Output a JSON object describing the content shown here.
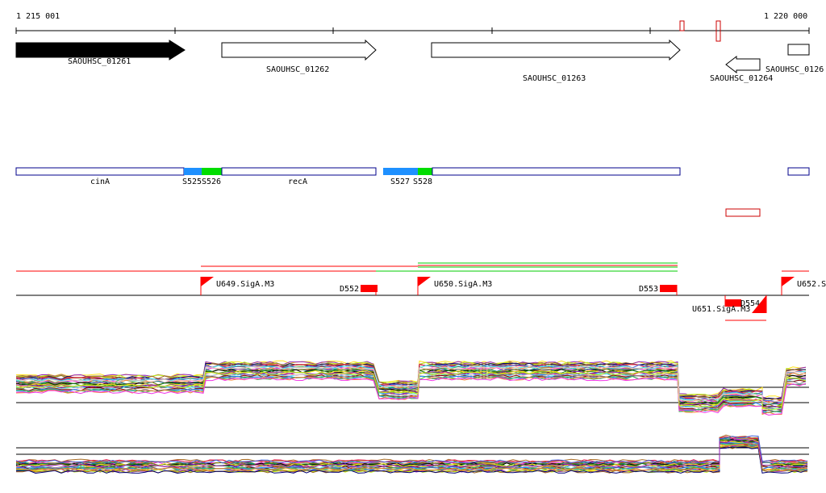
{
  "ruler": {
    "start_label": "1 215 001",
    "end_label": "1 220 000"
  },
  "genes": [
    {
      "name": "SAOUHSC_01261",
      "strand": "+",
      "filled": true
    },
    {
      "name": "SAOUHSC_01262",
      "strand": "+",
      "filled": false
    },
    {
      "name": "SAOUHSC_01263",
      "strand": "+",
      "filled": false
    },
    {
      "name": "SAOUHSC_01264",
      "strand": "-",
      "filled": false
    },
    {
      "name": "SAOUHSC_0126",
      "strand": "+",
      "filled": false
    }
  ],
  "operon_track": {
    "labels": [
      "cinA",
      "S525",
      "S526",
      "recA",
      "S527",
      "S528"
    ]
  },
  "segments": [
    {
      "label": "U649.SigA.M3",
      "type": "up"
    },
    {
      "label": "D552",
      "type": "down"
    },
    {
      "label": "U650.SigA.M3",
      "type": "up"
    },
    {
      "label": "D553",
      "type": "down"
    },
    {
      "label": "D554",
      "type": "down"
    },
    {
      "label": "U651.SigA.M3",
      "type": "up"
    },
    {
      "label": "U652.S",
      "type": "up"
    }
  ],
  "colors": {
    "gene_fill": "#000000",
    "operon_outline": "#00008b",
    "sigma_blue": "#1e90ff",
    "sigma_green": "#00dd00",
    "segment_red": "#ff0000",
    "segment_green": "#00cc00"
  }
}
